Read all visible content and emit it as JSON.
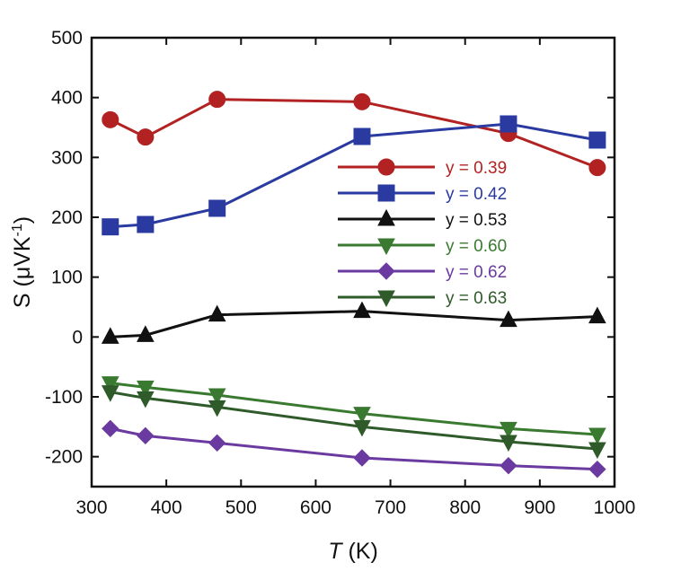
{
  "chart_data": {
    "type": "line",
    "xlabel": {
      "prefix": "",
      "italic": "T",
      "suffix": " (K)"
    },
    "ylabel": {
      "main": "S (μVK",
      "sup": "-1",
      "close": ")"
    },
    "xlim": [
      300,
      1000
    ],
    "ylim": [
      -250,
      500
    ],
    "xticks": [
      300,
      400,
      500,
      600,
      700,
      800,
      900,
      1000
    ],
    "yticks": [
      -200,
      -100,
      0,
      100,
      200,
      300,
      400,
      500
    ],
    "grid": false,
    "legend_position": "center-right",
    "series": [
      {
        "name": "y = 0.39",
        "marker": "circle",
        "color": "#b22222",
        "x": [
          325,
          372,
          468,
          662,
          858,
          977
        ],
        "y": [
          363,
          334,
          397,
          393,
          340,
          283
        ]
      },
      {
        "name": "y = 0.42",
        "marker": "square",
        "color": "#2a3aa0",
        "x": [
          325,
          372,
          468,
          662,
          858,
          977
        ],
        "y": [
          184,
          188,
          215,
          335,
          356,
          329
        ]
      },
      {
        "name": "y = 0.53",
        "marker": "triangle-up",
        "color": "#111111",
        "x": [
          325,
          372,
          468,
          662,
          858,
          977
        ],
        "y": [
          0,
          3,
          37,
          43,
          28,
          34
        ]
      },
      {
        "name": "y = 0.60",
        "marker": "triangle-down",
        "color": "#3a7a30",
        "x": [
          325,
          372,
          468,
          662,
          858,
          977
        ],
        "y": [
          -77,
          -84,
          -97,
          -128,
          -153,
          -163
        ]
      },
      {
        "name": "y = 0.62",
        "marker": "diamond",
        "color": "#6a3aa0",
        "x": [
          325,
          372,
          468,
          662,
          858,
          977
        ],
        "y": [
          -153,
          -165,
          -177,
          -202,
          -215,
          -221
        ]
      },
      {
        "name": "y = 0.63",
        "marker": "triangle-down",
        "color": "#2f5a2a",
        "x": [
          325,
          372,
          468,
          662,
          858,
          977
        ],
        "y": [
          -92,
          -102,
          -117,
          -150,
          -175,
          -187
        ]
      }
    ]
  }
}
